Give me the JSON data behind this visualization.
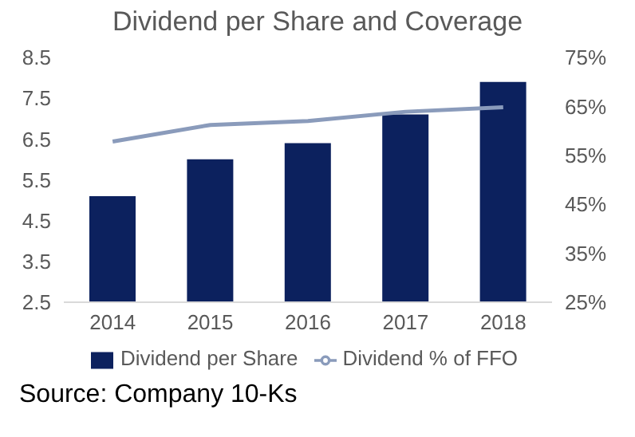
{
  "chart_data": {
    "type": "bar",
    "title": "Dividend per Share and Coverage",
    "categories": [
      "2014",
      "2015",
      "2016",
      "2017",
      "2018"
    ],
    "series": [
      {
        "name": "Dividend per Share",
        "color": "#0c215e",
        "values": [
          5.1,
          6.0,
          6.4,
          7.1,
          7.9
        ]
      },
      {
        "name": "Dividend % of FFO",
        "type": "line",
        "axis": "y2",
        "color": "#8a9bbb",
        "values": [
          57.8,
          61.2,
          62,
          63.9,
          64.8
        ]
      }
    ],
    "ylim": [
      2.5,
      8.5
    ],
    "yticks": [
      2.5,
      3.5,
      4.5,
      5.5,
      6.5,
      7.5,
      8.5
    ],
    "y2lim": [
      25,
      75
    ],
    "y2ticks": [
      {
        "value": 25,
        "label": "25%"
      },
      {
        "value": 35,
        "label": "35%"
      },
      {
        "value": 45,
        "label": "45%"
      },
      {
        "value": 55,
        "label": "55%"
      },
      {
        "value": 65,
        "label": "65%"
      },
      {
        "value": 75,
        "label": "75%"
      }
    ],
    "grid": false,
    "legend": "bottom",
    "marker": "none",
    "annotations": [
      "Source: Company 10-Ks"
    ]
  }
}
